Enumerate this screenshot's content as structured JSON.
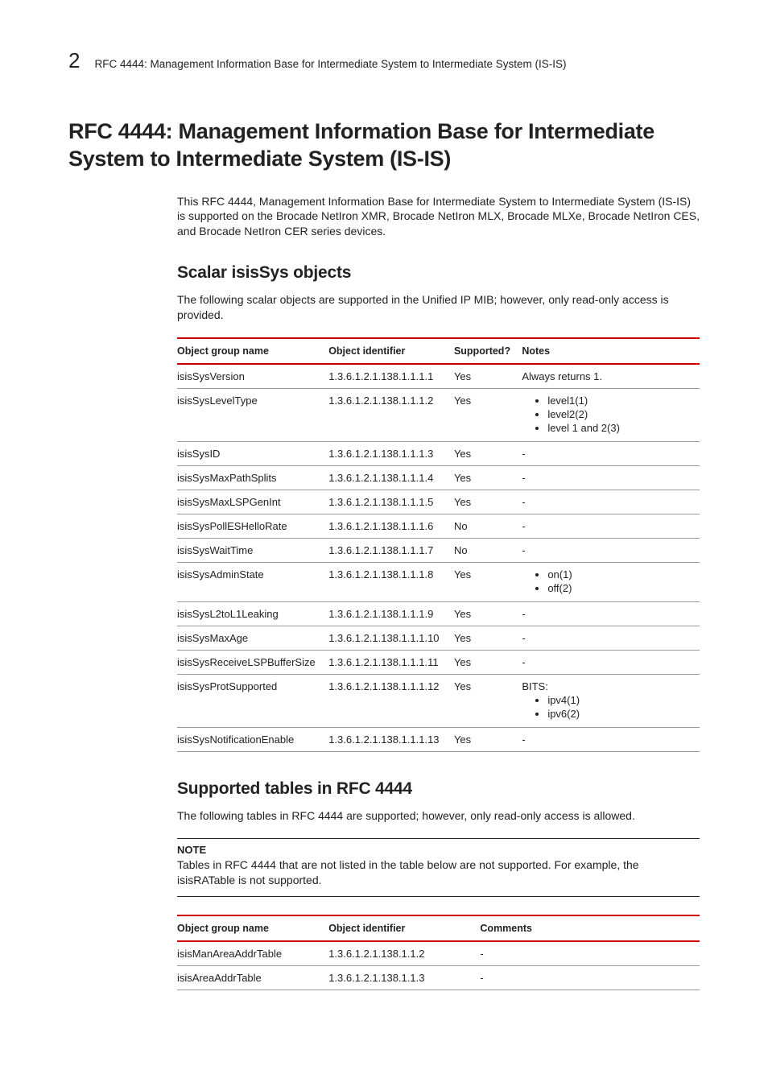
{
  "header": {
    "chapter_number": "2",
    "running_title": "RFC 4444: Management Information Base for Intermediate System to Intermediate System (IS-IS)"
  },
  "title": "RFC 4444: Management Information Base for Intermediate System to Intermediate System (IS-IS)",
  "intro": "This RFC 4444, Management Information Base for Intermediate System to Intermediate System (IS-IS) is supported on the Brocade NetIron XMR, Brocade NetIron MLX, Brocade MLXe, Brocade NetIron CES, and Brocade NetIron CER series devices.",
  "section1": {
    "heading": "Scalar isisSys objects",
    "para": "The following scalar objects are supported in the Unified IP MIB; however, only read-only access is provided.",
    "columns": [
      "Object group name",
      "Object identifier",
      "Supported?",
      "Notes"
    ],
    "rows": [
      {
        "name": "isisSysVersion",
        "oid": "1.3.6.1.2.1.138.1.1.1.1",
        "supported": "Yes",
        "note_text": "Always returns 1."
      },
      {
        "name": "isisSysLevelType",
        "oid": "1.3.6.1.2.1.138.1.1.1.2",
        "supported": "Yes",
        "note_list": [
          "level1(1)",
          "level2(2)",
          "level 1 and 2(3)"
        ]
      },
      {
        "name": "isisSysID",
        "oid": "1.3.6.1.2.1.138.1.1.1.3",
        "supported": "Yes",
        "note_text": "-"
      },
      {
        "name": "isisSysMaxPathSplits",
        "oid": "1.3.6.1.2.1.138.1.1.1.4",
        "supported": "Yes",
        "note_text": "-"
      },
      {
        "name": "isisSysMaxLSPGenInt",
        "oid": "1.3.6.1.2.1.138.1.1.1.5",
        "supported": "Yes",
        "note_text": "-"
      },
      {
        "name": "isisSysPollESHelloRate",
        "oid": "1.3.6.1.2.1.138.1.1.1.6",
        "supported": "No",
        "note_text": "-"
      },
      {
        "name": "isisSysWaitTime",
        "oid": "1.3.6.1.2.1.138.1.1.1.7",
        "supported": "No",
        "note_text": "-"
      },
      {
        "name": "isisSysAdminState",
        "oid": "1.3.6.1.2.1.138.1.1.1.8",
        "supported": "Yes",
        "note_list": [
          "on(1)",
          "off(2)"
        ]
      },
      {
        "name": "isisSysL2toL1Leaking",
        "oid": "1.3.6.1.2.1.138.1.1.1.9",
        "supported": "Yes",
        "note_text": "-"
      },
      {
        "name": "isisSysMaxAge",
        "oid": "1.3.6.1.2.1.138.1.1.1.10",
        "supported": "Yes",
        "note_text": "-"
      },
      {
        "name": "isisSysReceiveLSPBufferSize",
        "oid": "1.3.6.1.2.1.138.1.1.1.11",
        "supported": "Yes",
        "note_text": "-"
      },
      {
        "name": "isisSysProtSupported",
        "oid": "1.3.6.1.2.1.138.1.1.1.12",
        "supported": "Yes",
        "note_prefix": "BITS:",
        "note_list": [
          "ipv4(1)",
          "ipv6(2)"
        ]
      },
      {
        "name": "isisSysNotificationEnable",
        "oid": "1.3.6.1.2.1.138.1.1.1.13",
        "supported": "Yes",
        "note_text": "-"
      }
    ]
  },
  "section2": {
    "heading": "Supported tables in RFC 4444",
    "para": "The following tables in RFC 4444 are supported; however, only read-only access is allowed.",
    "note_label": "NOTE",
    "note_text": "Tables in RFC 4444 that are not listed in the table below are not supported. For example, the isisRATable is not supported.",
    "columns": [
      "Object group name",
      "Object identifier",
      "Comments"
    ],
    "rows": [
      {
        "name": "isisManAreaAddrTable",
        "oid": "1.3.6.1.2.1.138.1.1.2",
        "comment": "-"
      },
      {
        "name": "isisAreaAddrTable",
        "oid": "1.3.6.1.2.1.138.1.1.3",
        "comment": "-"
      }
    ]
  }
}
